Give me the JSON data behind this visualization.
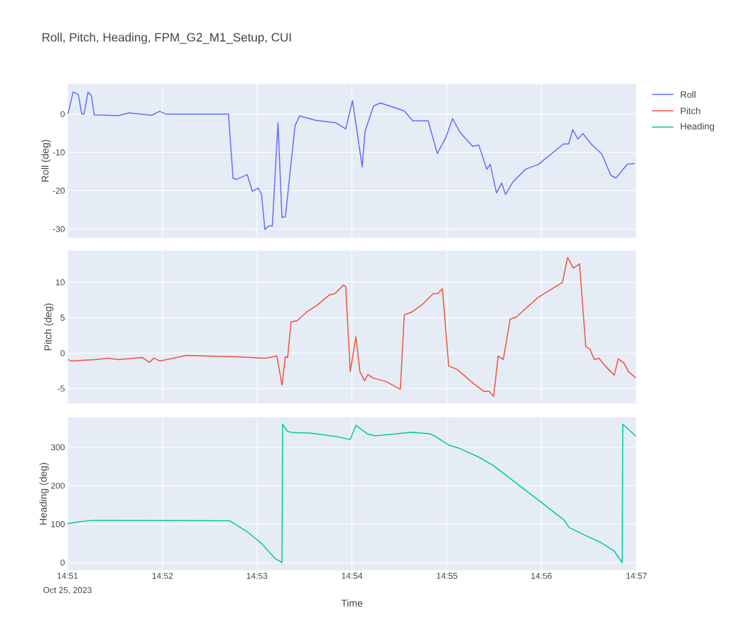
{
  "chart_data": [
    {
      "type": "line",
      "title": "Roll, Pitch, Heading, FPM_G2_M1_Setup, CUI",
      "ylabel": "Roll (deg)",
      "legend": "top right",
      "grid": true,
      "tick_labels": "y",
      "xlim": [
        14.85,
        14.95
      ],
      "xticks": [
        {
          "value": 14.85,
          "label": null
        },
        {
          "value": 14.8667,
          "label": null
        },
        {
          "value": 14.8833,
          "label": null
        },
        {
          "value": 14.9,
          "label": null
        },
        {
          "value": 14.9167,
          "label": null
        },
        {
          "value": 14.9333,
          "label": null
        },
        {
          "value": 14.95,
          "label": null
        }
      ],
      "ylim": [
        -32.3,
        7.9
      ],
      "yticks": [
        -30,
        -20,
        -10,
        0
      ],
      "x": [
        14.8501,
        14.851,
        14.8519,
        14.8525,
        14.8529,
        14.8536,
        14.8542,
        14.8547,
        14.859,
        14.8608,
        14.8648,
        14.8662,
        14.8673,
        14.8783,
        14.8791,
        14.8798,
        14.8816,
        14.8825,
        14.8835,
        14.8841,
        14.8847,
        14.8854,
        14.886,
        14.887,
        14.8877,
        14.8883,
        14.89,
        14.8908,
        14.8935,
        14.8972,
        14.8989,
        14.9001,
        14.9018,
        14.9023,
        14.9038,
        14.905,
        14.9092,
        14.9107,
        14.9134,
        14.915,
        14.9165,
        14.9177,
        14.919,
        14.9212,
        14.9223,
        14.9237,
        14.9243,
        14.9254,
        14.9263,
        14.927,
        14.9283,
        14.9305,
        14.9328,
        14.9372,
        14.9381,
        14.9388,
        14.9397,
        14.9406,
        14.9421,
        14.9439,
        14.9455,
        14.9464,
        14.9484,
        14.9497
      ],
      "series": [
        {
          "name": "Roll",
          "color": "#636efa",
          "values": [
            0.1,
            5.8,
            5.1,
            0.1,
            0,
            5.7,
            4.8,
            -0.2,
            -0.4,
            0.3,
            -0.3,
            0.7,
            0,
            0,
            -16.8,
            -17,
            -15.8,
            -20.2,
            -19.3,
            -20.9,
            -30.1,
            -29.2,
            -29.2,
            -2.3,
            -27,
            -26.8,
            -3,
            -0.5,
            -1.6,
            -2.3,
            -3.9,
            3.5,
            -13.8,
            -4.5,
            2.1,
            2.9,
            0.8,
            -1.8,
            -1.8,
            -10.3,
            -6.1,
            -1.2,
            -4.8,
            -8.4,
            -8.1,
            -14.4,
            -13.1,
            -20.6,
            -18,
            -21,
            -17.7,
            -14.4,
            -13.1,
            -7.8,
            -7.8,
            -4.1,
            -6.5,
            -5.1,
            -7.9,
            -10.4,
            -16,
            -16.7,
            -13.1,
            -12.9
          ]
        }
      ]
    },
    {
      "type": "line",
      "ylabel": "Pitch (deg)",
      "legend": "top right",
      "grid": true,
      "tick_labels": "y",
      "xlim": [
        14.85,
        14.95
      ],
      "xticks": [
        {
          "value": 14.85,
          "label": null
        },
        {
          "value": 14.8667,
          "label": null
        },
        {
          "value": 14.8833,
          "label": null
        },
        {
          "value": 14.9,
          "label": null
        },
        {
          "value": 14.9167,
          "label": null
        },
        {
          "value": 14.9333,
          "label": null
        },
        {
          "value": 14.95,
          "label": null
        }
      ],
      "ylim": [
        -7.1,
        14.5
      ],
      "yticks": [
        -5,
        0,
        5,
        10
      ],
      "x": [
        14.8501,
        14.8506,
        14.8548,
        14.8571,
        14.859,
        14.8631,
        14.8644,
        14.8652,
        14.8662,
        14.871,
        14.8743,
        14.8798,
        14.8847,
        14.8868,
        14.8877,
        14.8883,
        14.8887,
        14.8893,
        14.8904,
        14.8922,
        14.8939,
        14.896,
        14.897,
        14.8985,
        14.8989,
        14.8997,
        14.9007,
        14.9014,
        14.9022,
        14.9028,
        14.9037,
        14.906,
        14.9085,
        14.9092,
        14.9105,
        14.9124,
        14.9143,
        14.9151,
        14.9159,
        14.917,
        14.9185,
        14.9214,
        14.9232,
        14.9241,
        14.9249,
        14.9257,
        14.9266,
        14.9278,
        14.9289,
        14.9326,
        14.937,
        14.9379,
        14.9389,
        14.94,
        14.9411,
        14.9418,
        14.9426,
        14.9434,
        14.9445,
        14.9461,
        14.9468,
        14.9478,
        14.9486,
        14.9499
      ],
      "series": [
        {
          "name": "Pitch",
          "color": "#ef553b",
          "values": [
            -0.9,
            -1.1,
            -0.9,
            -0.7,
            -0.9,
            -0.6,
            -1.3,
            -0.7,
            -1.1,
            -0.3,
            -0.4,
            -0.5,
            -0.7,
            -0.4,
            -4.5,
            -0.5,
            -0.6,
            4.4,
            4.6,
            5.9,
            6.8,
            8.2,
            8.4,
            9.6,
            9.4,
            -2.6,
            2.3,
            -2.6,
            -3.9,
            -3,
            -3.5,
            -4,
            -5.1,
            5.4,
            5.8,
            6.9,
            8.4,
            8.4,
            9.1,
            -1.8,
            -2.3,
            -4.3,
            -5.4,
            -5.4,
            -6.1,
            -0.4,
            -0.9,
            4.8,
            5.1,
            7.8,
            10,
            13.5,
            12,
            12.6,
            0.9,
            0.6,
            -0.9,
            -0.7,
            -1.8,
            -3.1,
            -0.8,
            -1.4,
            -2.6,
            -3.5
          ]
        }
      ]
    },
    {
      "type": "line",
      "ylabel": "Heading (deg)",
      "xlabel": "Time",
      "legend": "top right",
      "grid": true,
      "annotations": [
        "Oct 25, 2023"
      ],
      "xlim": [
        14.85,
        14.95
      ],
      "xticks": [
        {
          "value": 14.85,
          "label": "14:51"
        },
        {
          "value": 14.8667,
          "label": "14:52"
        },
        {
          "value": 14.8833,
          "label": "14:53"
        },
        {
          "value": 14.9,
          "label": "14:54"
        },
        {
          "value": 14.9167,
          "label": "14:55"
        },
        {
          "value": 14.9333,
          "label": "14:56"
        },
        {
          "value": 14.95,
          "label": "14:57"
        }
      ],
      "ylim": [
        -20,
        378
      ],
      "yticks": [
        0,
        100,
        200,
        300
      ],
      "x": [
        14.85,
        14.8519,
        14.8544,
        14.8785,
        14.8818,
        14.8841,
        14.8866,
        14.8872,
        14.8877,
        14.8878,
        14.8887,
        14.8897,
        14.8927,
        14.8972,
        14.8997,
        14.9007,
        14.9028,
        14.9041,
        14.9072,
        14.9105,
        14.9137,
        14.9147,
        14.917,
        14.9189,
        14.9222,
        14.9247,
        14.9272,
        14.9372,
        14.9382,
        14.9413,
        14.9438,
        14.9461,
        14.9475,
        14.9476,
        14.9499
      ],
      "series": [
        {
          "name": "Heading",
          "color": "#00cc96",
          "values": [
            101,
            106,
            110,
            109,
            78,
            50,
            9,
            5,
            0,
            360,
            341,
            338,
            337,
            328,
            320,
            357,
            334,
            330,
            334,
            339,
            335,
            328,
            306,
            297,
            275,
            254,
            226,
            112,
            91,
            69,
            52,
            30,
            0,
            360,
            329
          ]
        }
      ]
    }
  ]
}
